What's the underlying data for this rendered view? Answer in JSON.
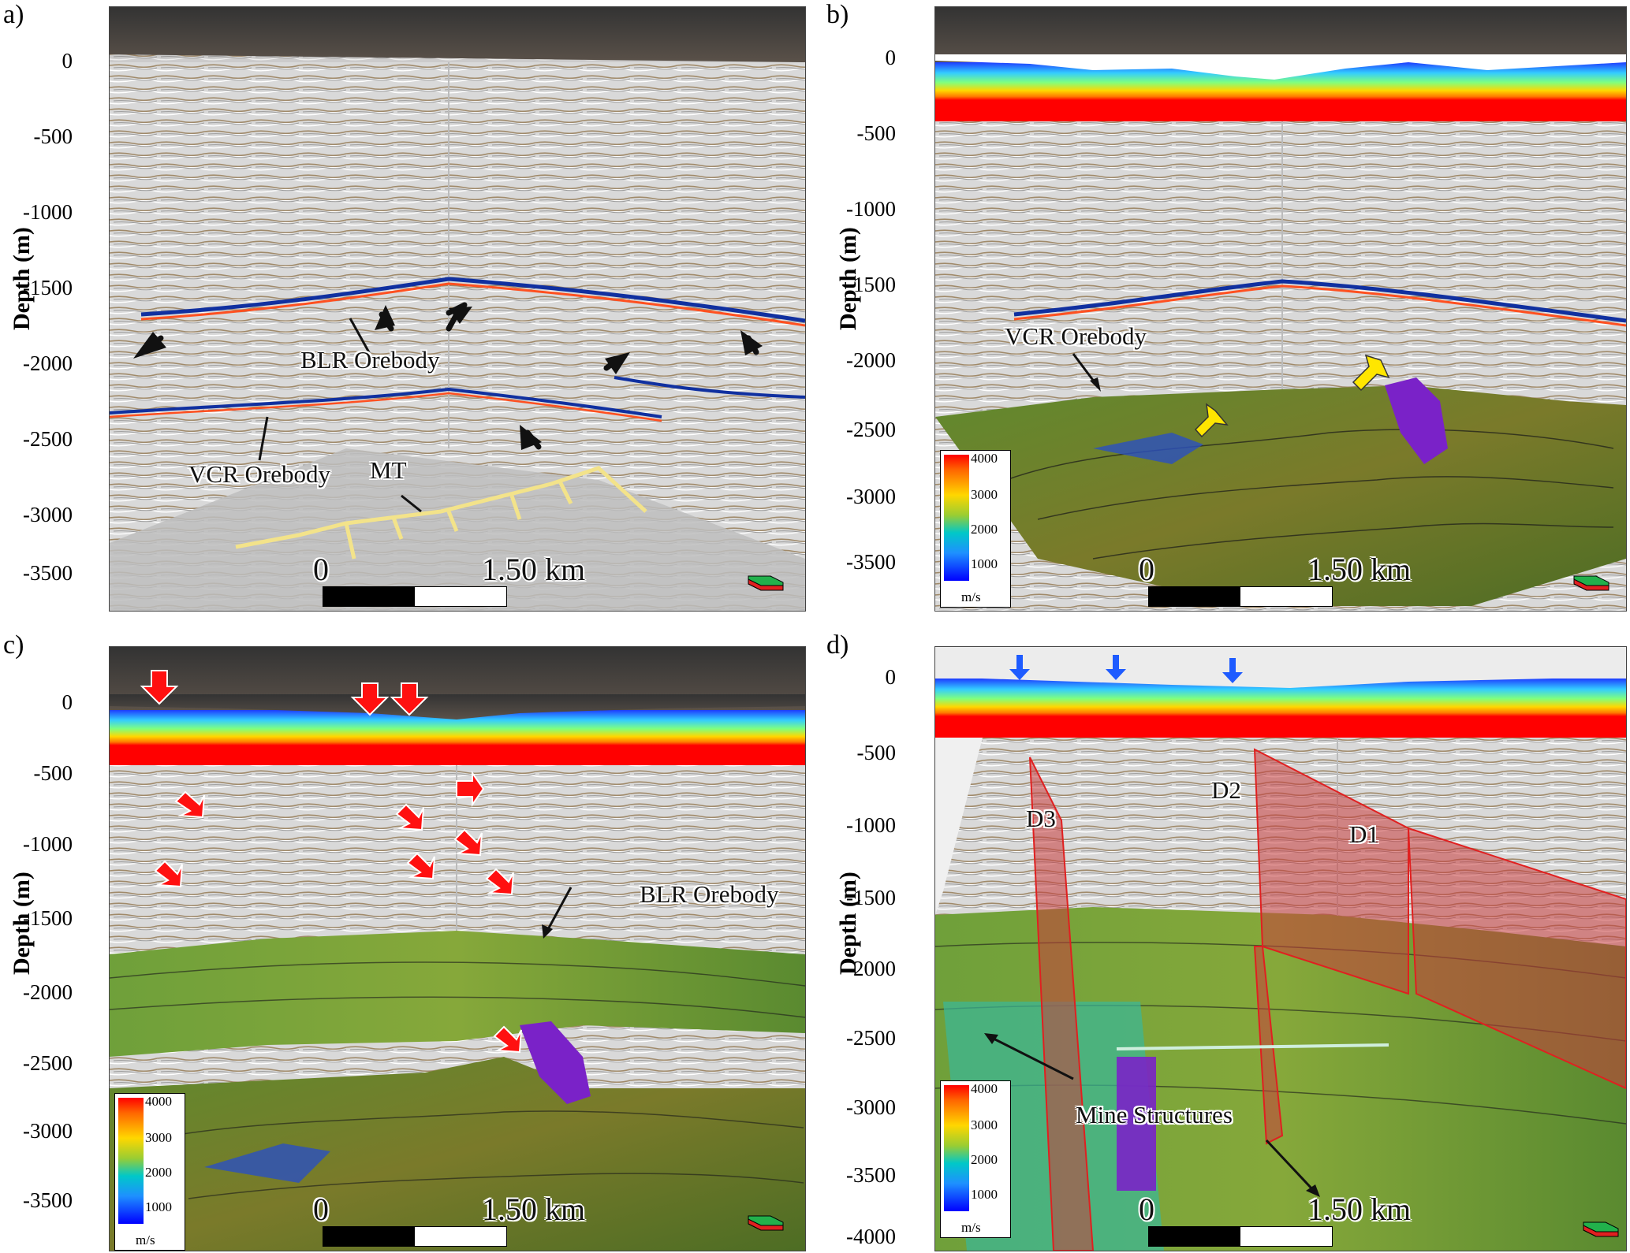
{
  "panels": {
    "a": {
      "letter": "a)",
      "ylabel": "Depth (m)",
      "ticks": [
        "0",
        "-500",
        "-1000",
        "-1500",
        "-2000",
        "-2500",
        "-3000",
        "-3500"
      ],
      "labels": {
        "blr": "BLR Orebody",
        "vcr": "VCR Orebody",
        "mt": "MT"
      },
      "scale": {
        "start": "0",
        "end": "1.50 km"
      }
    },
    "b": {
      "letter": "b)",
      "ylabel": "Depth (m)",
      "ticks": [
        "0",
        "-500",
        "-1000",
        "-1500",
        "-2000",
        "-2500",
        "-3000",
        "-3500"
      ],
      "labels": {
        "vcr": "VCR Orebody"
      },
      "colorbar": {
        "values": [
          "4000",
          "3000",
          "2000",
          "1000"
        ],
        "unit": "m/s"
      },
      "scale": {
        "start": "0",
        "end": "1.50 km"
      }
    },
    "c": {
      "letter": "c)",
      "ylabel": "Depth (m)",
      "ticks": [
        "0",
        "-500",
        "-1000",
        "-1500",
        "-2000",
        "-2500",
        "-3000",
        "-3500"
      ],
      "labels": {
        "blr": "BLR Orebody"
      },
      "colorbar": {
        "values": [
          "4000",
          "3000",
          "2000",
          "1000"
        ],
        "unit": "m/s"
      },
      "scale": {
        "start": "0",
        "end": "1.50 km"
      }
    },
    "d": {
      "letter": "d)",
      "ylabel": "Depth (m)",
      "ticks": [
        "0",
        "-500",
        "-1000",
        "-1500",
        "-2000",
        "-2500",
        "-3000",
        "-3500",
        "-4000"
      ],
      "labels": {
        "d1": "D1",
        "d2": "D2",
        "d3": "D3",
        "mine": "Mine Structures"
      },
      "colorbar": {
        "values": [
          "4000",
          "3000",
          "2000",
          "1000"
        ],
        "unit": "m/s"
      },
      "scale": {
        "start": "0",
        "end": "1.50 km"
      }
    }
  },
  "colors": {
    "arrow_black": "#111111",
    "arrow_red": "#ff1010",
    "arrow_yellow": "#ffe600",
    "arrow_blue": "#1e5bff",
    "fault": "#c83c3c"
  }
}
